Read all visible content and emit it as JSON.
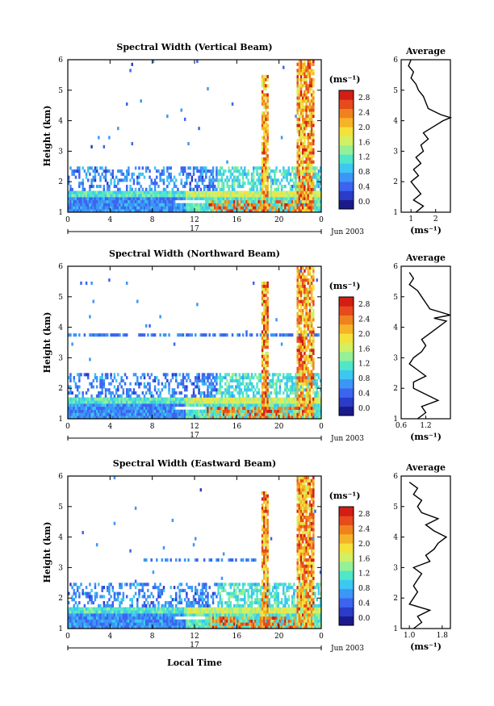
{
  "chart_data": [
    {
      "type": "heatmap",
      "title": "Spectral Width (Vertical Beam)",
      "ylabel": "Height (km)",
      "x_ticks": [
        "0",
        "4",
        "8",
        "12",
        "16",
        "20",
        "0"
      ],
      "y_ticks": [
        "1",
        "2",
        "3",
        "4",
        "5",
        "6"
      ],
      "date_label": "17",
      "month_label": "Jun 2003",
      "colorbar": {
        "unit": "(ms⁻¹)",
        "ticks": [
          "0.0",
          "0.4",
          "0.8",
          "1.2",
          "1.6",
          "2.0",
          "2.4",
          "2.8"
        ]
      },
      "profile": {
        "title": "Average",
        "xlabel": "(ms⁻¹)",
        "x_ticks": [
          "1",
          "2"
        ],
        "xlim": [
          0.6,
          2.6
        ],
        "heights": [
          1.0,
          1.2,
          1.4,
          1.6,
          1.8,
          2.0,
          2.2,
          2.4,
          2.6,
          2.8,
          3.0,
          3.2,
          3.4,
          3.6,
          3.8,
          4.0,
          4.1,
          4.2,
          4.4,
          4.6,
          4.8,
          5.0,
          5.2,
          5.4,
          5.6,
          5.8,
          6.0
        ],
        "values": [
          1.2,
          1.5,
          1.1,
          1.4,
          1.2,
          1.0,
          1.3,
          1.1,
          1.4,
          1.2,
          1.5,
          1.4,
          1.7,
          1.5,
          1.9,
          2.3,
          2.6,
          2.2,
          1.7,
          1.6,
          1.5,
          1.3,
          1.2,
          1.0,
          1.1,
          0.9,
          1.0
        ]
      }
    },
    {
      "type": "heatmap",
      "title": "Spectral Width (Northward Beam)",
      "ylabel": "Height (km)",
      "x_ticks": [
        "0",
        "4",
        "8",
        "12",
        "16",
        "20",
        "0"
      ],
      "y_ticks": [
        "1",
        "2",
        "3",
        "4",
        "5",
        "6"
      ],
      "date_label": "17",
      "month_label": "Jun 2003",
      "colorbar": {
        "unit": "(ms⁻¹)",
        "ticks": [
          "0.0",
          "0.4",
          "0.8",
          "1.2",
          "1.6",
          "2.0",
          "2.4",
          "2.8"
        ]
      },
      "profile": {
        "title": "Average",
        "xlabel": "(ms⁻¹)",
        "x_ticks": [
          "0.6",
          "1.2"
        ],
        "xlim": [
          0.6,
          1.8
        ],
        "heights": [
          1.0,
          1.2,
          1.4,
          1.6,
          1.8,
          2.0,
          2.2,
          2.4,
          2.6,
          2.8,
          3.0,
          3.2,
          3.4,
          3.6,
          3.8,
          4.0,
          4.2,
          4.3,
          4.4,
          4.6,
          4.8,
          5.0,
          5.2,
          5.4,
          5.6,
          5.8
        ],
        "values": [
          1.0,
          1.2,
          1.1,
          1.5,
          1.2,
          0.9,
          0.9,
          1.2,
          1.0,
          0.8,
          0.9,
          1.1,
          1.2,
          1.1,
          1.3,
          1.5,
          1.7,
          1.4,
          1.8,
          1.3,
          1.2,
          1.1,
          1.0,
          0.8,
          0.9,
          0.8
        ]
      }
    },
    {
      "type": "heatmap",
      "title": "Spectral Width (Eastward Beam)",
      "ylabel": "Height (km)",
      "xlabel": "Local Time",
      "x_ticks": [
        "0",
        "4",
        "8",
        "12",
        "16",
        "20",
        "0"
      ],
      "y_ticks": [
        "1",
        "2",
        "3",
        "4",
        "5",
        "6"
      ],
      "date_label": "17",
      "month_label": "Jun 2003",
      "colorbar": {
        "unit": "(ms⁻¹)",
        "ticks": [
          "0.0",
          "0.4",
          "0.8",
          "1.2",
          "1.6",
          "2.0",
          "2.4",
          "2.8"
        ]
      },
      "profile": {
        "title": "Average",
        "xlabel": "(ms⁻¹)",
        "x_ticks": [
          "1.0",
          "1.8"
        ],
        "xlim": [
          0.8,
          2.0
        ],
        "heights": [
          1.0,
          1.2,
          1.4,
          1.6,
          1.8,
          2.0,
          2.2,
          2.4,
          2.6,
          2.8,
          3.0,
          3.2,
          3.4,
          3.6,
          3.8,
          4.0,
          4.2,
          4.4,
          4.6,
          4.8,
          5.0,
          5.2,
          5.4,
          5.6,
          5.8
        ],
        "values": [
          1.1,
          1.3,
          1.2,
          1.5,
          1.0,
          1.1,
          1.2,
          1.1,
          1.2,
          1.3,
          1.1,
          1.5,
          1.4,
          1.6,
          1.7,
          1.9,
          1.6,
          1.4,
          1.7,
          1.3,
          1.2,
          1.3,
          1.1,
          1.2,
          1.0
        ]
      }
    }
  ]
}
